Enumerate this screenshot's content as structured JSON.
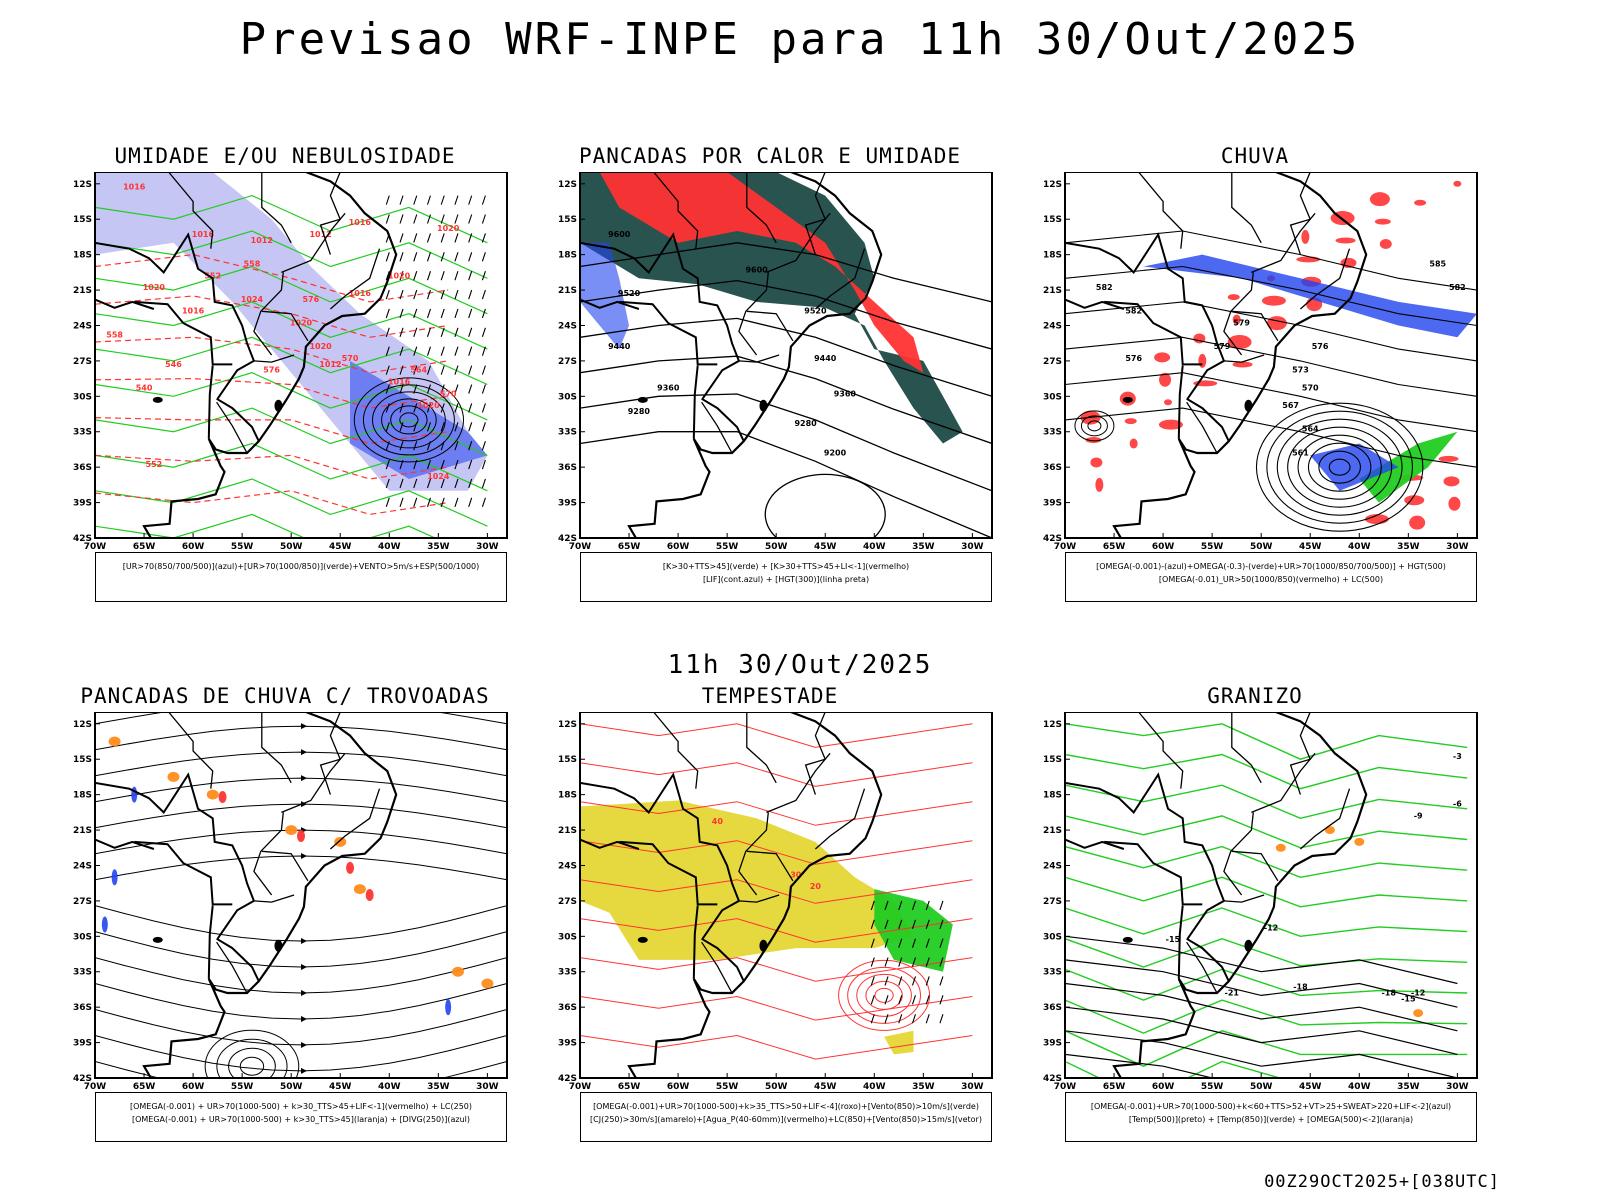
{
  "header": {
    "title": "Previsao WRF-INPE  para 11h 30/Out/2025",
    "mid_title": "11h 30/Out/2025",
    "footer": "00Z29OCT2025+[038UTC]"
  },
  "axes": {
    "lat_labels": [
      "12S",
      "15S",
      "18S",
      "21S",
      "24S",
      "27S",
      "30S",
      "33S",
      "36S",
      "39S",
      "42S"
    ],
    "lon_labels": [
      "70W",
      "65W",
      "60W",
      "55W",
      "50W",
      "45W",
      "40W",
      "35W",
      "30W"
    ]
  },
  "colors": {
    "blue_fill": "#b3b3f2",
    "blue": "#2244ee",
    "green": "#22cc22",
    "red": "#ff3333",
    "dark_green": "#1d4a46",
    "orange": "#ff8c1a",
    "yellow": "#e3d42a"
  },
  "panels": [
    {
      "title": "UMIDADE E/OU NEBULOSIDADE",
      "legend": [
        "[UR>70(850/700/500)](azul)+[UR>70(1000/850)](verde)+VENTO>5m/s+ESP(500/1000)"
      ],
      "labels": [
        "1016",
        "1016",
        "1012",
        "1012",
        "1016",
        "1016",
        "1020",
        "1020",
        "1020",
        "1016",
        "1024",
        "1020",
        "1020",
        "1012",
        "1016",
        "1020",
        "1024",
        "576",
        "576",
        "570",
        "570",
        "564",
        "558",
        "552",
        "546",
        "540",
        "552",
        "558"
      ]
    },
    {
      "title": "PANCADAS POR CALOR E UMIDADE",
      "legend": [
        "[K>30+TTS>45](verde) + [K>30+TTS>45+LI<-1](vermelho)",
        "[LIF](cont.azul) + [HGT(300)](linha preta)"
      ],
      "labels": [
        "9600",
        "9520",
        "9440",
        "9360",
        "9280",
        "9200",
        "9600",
        "9520",
        "9440",
        "9360",
        "9280"
      ]
    },
    {
      "title": "CHUVA",
      "legend": [
        "[OMEGA(-0.001)-(azul)+OMEGA(-0.3)-(verde)+UR>70(1000/850/700/500)] + HGT(500)",
        "[OMEGA(-0.01)_UR>50(1000/850)(vermelho) + LC(500)"
      ],
      "labels": [
        "582",
        "582",
        "579",
        "576",
        "576",
        "573",
        "570",
        "567",
        "564",
        "561",
        "582",
        "579",
        "585"
      ]
    },
    {
      "title": "PANCADAS DE CHUVA C/ TROVOADAS",
      "legend": [
        "[OMEGA(-0.001) + UR>70(1000-500) + k>30_TTS>45+LIF<-1](vermelho) + LC(250)",
        "[OMEGA(-0.001) + UR>70(1000-500) + k>30_TTS>45](laranja) + [DIVG(250)](azul)"
      ],
      "labels": []
    },
    {
      "title": "TEMPESTADE",
      "legend": [
        "[OMEGA(-0.001)+UR>70(1000-500)+k>35_TTS>50+LIF<-4](roxo)+[Vento(850)>10m/s](verde)",
        "[CJ(250)>30m/s](amarelo)+[Agua_P(40-60mm)](vermelho)+LC(850)+[Vento(850)>15m/s](vetor)"
      ],
      "labels": [
        "40",
        "30",
        "20"
      ]
    },
    {
      "title": "GRANIZO",
      "legend": [
        "[OMEGA(-0.001)+UR>70(1000-500)+k<60+TTS>52+VT>25+SWEAT>220+LIF<-2](azul)",
        "[Temp(500)](preto) + [Temp(850)](verde) + [OMEGA(500)<-2](laranja)"
      ],
      "labels": [
        "-15",
        "-12",
        "-21",
        "-18",
        "-15",
        "-12",
        "-9",
        "-6",
        "-3",
        "-18"
      ]
    }
  ]
}
